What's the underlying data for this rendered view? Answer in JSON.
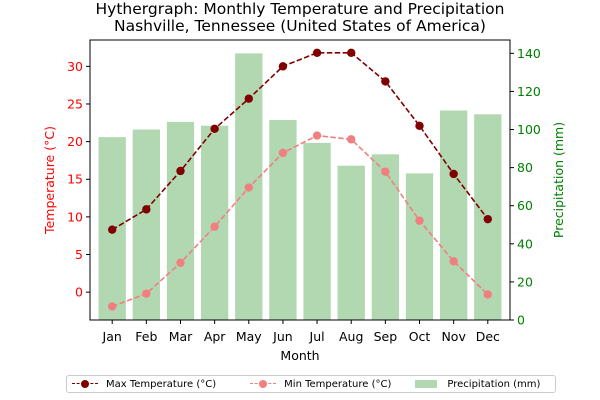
{
  "title": {
    "line1": "Hythergraph: Monthly Temperature and Precipitation",
    "line2": "Nashville, Tennessee (United States of America)"
  },
  "colors": {
    "max_temp": "#800000",
    "min_temp": "#f08080",
    "precip": "#b2d8b2",
    "left_axis": "#ff0000",
    "right_axis": "#008000"
  },
  "chart_data": {
    "type": "bar",
    "categories": [
      "Jan",
      "Feb",
      "Mar",
      "Apr",
      "May",
      "Jun",
      "Jul",
      "Aug",
      "Sep",
      "Oct",
      "Nov",
      "Dec"
    ],
    "xlabel": "Month",
    "ylabel_left": "Temperature (°C)",
    "ylabel_right": "Precipitation (mm)",
    "ylim_left": [
      -3.7,
      33.5
    ],
    "ylim_right": [
      0,
      147
    ],
    "yticks_left": [
      0,
      5,
      10,
      15,
      20,
      25,
      30
    ],
    "yticks_right": [
      0,
      20,
      40,
      60,
      80,
      100,
      120,
      140
    ],
    "series": [
      {
        "name": "Max Temperature (°C)",
        "kind": "line",
        "axis": "left",
        "values": [
          8.3,
          11.0,
          16.1,
          21.7,
          25.7,
          30.0,
          31.8,
          31.8,
          28.0,
          22.1,
          15.7,
          9.7
        ]
      },
      {
        "name": "Min Temperature (°C)",
        "kind": "line",
        "axis": "left",
        "values": [
          -1.9,
          -0.2,
          3.9,
          8.7,
          13.9,
          18.5,
          20.8,
          20.3,
          16.0,
          9.5,
          4.1,
          -0.3
        ]
      },
      {
        "name": "Precipitation (mm)",
        "kind": "bar",
        "axis": "right",
        "values": [
          96,
          100,
          104,
          102,
          140,
          105,
          93,
          81,
          87,
          77,
          110,
          108
        ]
      }
    ],
    "grid": false,
    "legend_position": "bottom"
  }
}
